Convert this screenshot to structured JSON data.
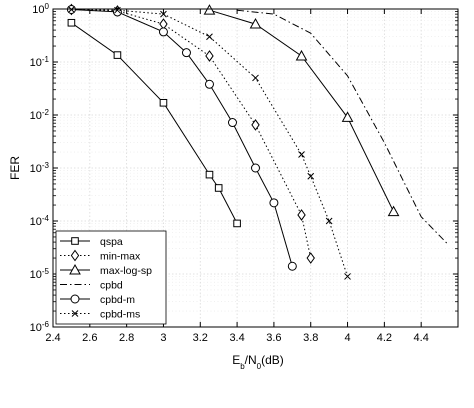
{
  "chart_data": {
    "type": "line",
    "xlabel": "E_b/N_0(dB)",
    "xlabel_parts": {
      "main": "E",
      "sub1": "b",
      "mid": "/N",
      "sub2": "0",
      "tail": "(dB)"
    },
    "ylabel": "FER",
    "xlim": [
      2.4,
      4.6
    ],
    "ylim_exponents": [
      -6,
      0
    ],
    "yscale": "log",
    "grid": true,
    "legend_placement": "bottom-left",
    "x_ticks": [
      "2.4",
      "2.6",
      "2.8",
      "3",
      "3.2",
      "3.4",
      "3.6",
      "3.8",
      "4",
      "4.2",
      "4.4"
    ],
    "y_ticks": [
      {
        "base": "10",
        "exp": "0"
      },
      {
        "base": "10",
        "exp": "-1"
      },
      {
        "base": "10",
        "exp": "-2"
      },
      {
        "base": "10",
        "exp": "-3"
      },
      {
        "base": "10",
        "exp": "-4"
      },
      {
        "base": "10",
        "exp": "-5"
      },
      {
        "base": "10",
        "exp": "-6"
      }
    ],
    "series": [
      {
        "name": "qspa",
        "marker": "square",
        "dash": "solid",
        "x": [
          2.5,
          2.75,
          3.0,
          3.25,
          3.3,
          3.4
        ],
        "y": [
          0.55,
          0.135,
          0.017,
          0.00075,
          0.00042,
          9e-05
        ]
      },
      {
        "name": "min-max",
        "marker": "diamond",
        "dash": "dotted",
        "x": [
          2.5,
          2.75,
          3.0,
          3.25,
          3.5,
          3.75,
          3.8
        ],
        "y": [
          0.98,
          0.92,
          0.52,
          0.13,
          0.0065,
          0.00013,
          2e-05
        ]
      },
      {
        "name": "max-log-sp",
        "marker": "triangle",
        "dash": "solid",
        "x": [
          3.25,
          3.5,
          3.75,
          4.0,
          4.25
        ],
        "y": [
          0.95,
          0.52,
          0.13,
          0.009,
          0.00015
        ]
      },
      {
        "name": "cpbd",
        "marker": "none",
        "dash": "dashdot",
        "x": [
          3.4,
          3.6,
          3.8,
          4.0,
          4.2,
          4.3,
          4.4,
          4.55
        ],
        "y": [
          0.95,
          0.8,
          0.35,
          0.055,
          0.003,
          0.0006,
          0.00012,
          3.5e-05
        ]
      },
      {
        "name": "cpbd-m",
        "marker": "circle",
        "dash": "solid",
        "x": [
          2.5,
          2.75,
          3.0,
          3.125,
          3.25,
          3.375,
          3.5,
          3.6,
          3.7
        ],
        "y": [
          0.98,
          0.88,
          0.37,
          0.15,
          0.038,
          0.0072,
          0.001,
          0.00022,
          1.4e-05
        ]
      },
      {
        "name": "cpbd-ms",
        "marker": "x",
        "dash": "dotted",
        "x": [
          2.5,
          2.75,
          3.0,
          3.25,
          3.5,
          3.75,
          3.8,
          3.9,
          4.0
        ],
        "y": [
          0.98,
          0.95,
          0.8,
          0.3,
          0.05,
          0.0018,
          0.0007,
          0.0001,
          9e-06
        ]
      }
    ]
  }
}
